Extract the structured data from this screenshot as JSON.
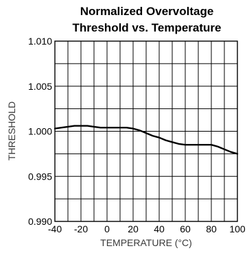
{
  "chart_data": {
    "type": "line",
    "title_lines": [
      "Normalized Overvoltage",
      "Threshold vs. Temperature"
    ],
    "xlabel": "TEMPERATURE (°C)",
    "ylabel": "THRESHOLD",
    "xlim": [
      -40,
      100
    ],
    "ylim": [
      0.99,
      1.01
    ],
    "xticks": [
      -40,
      -20,
      0,
      20,
      40,
      60,
      80,
      100
    ],
    "xtick_labels": [
      "-40",
      "-20",
      "0",
      "20",
      "40",
      "60",
      "80",
      "100"
    ],
    "yticks": [
      0.99,
      0.995,
      1.0,
      1.005,
      1.01
    ],
    "ytick_labels": [
      "0.990",
      "0.995",
      "1.000",
      "1.005",
      "1.010"
    ],
    "grid": true,
    "x_minor_step": 10,
    "y_minor_step": 0.0025,
    "series": [
      {
        "x": [
          -40,
          -35,
          -30,
          -25,
          -20,
          -15,
          -10,
          -5,
          0,
          5,
          10,
          15,
          20,
          25,
          30,
          35,
          40,
          45,
          50,
          55,
          60,
          65,
          70,
          75,
          80,
          85,
          90,
          95,
          100
        ],
        "y": [
          1.0003,
          1.0004,
          1.0005,
          1.0006,
          1.0006,
          1.0006,
          1.0005,
          1.0004,
          1.0004,
          1.0004,
          1.0004,
          1.0004,
          1.0003,
          1.0001,
          0.9998,
          0.9995,
          0.9993,
          0.999,
          0.9988,
          0.9986,
          0.9985,
          0.9985,
          0.9985,
          0.9985,
          0.9985,
          0.9983,
          0.998,
          0.9977,
          0.9975
        ]
      }
    ]
  }
}
